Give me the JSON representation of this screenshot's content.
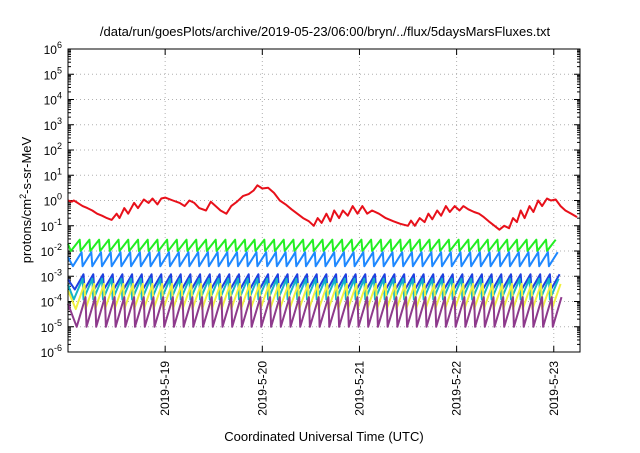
{
  "chart_data": {
    "type": "line",
    "title": "/data/run/goesPlots/archive/2019-05-23/06:00/bryn/../flux/5daysMarsFluxes.txt",
    "xlabel": "Coordinated Universal Time (UTC)",
    "ylabel": {
      "prefix": "protons/cm",
      "sup": "2",
      "suffix": "-s-sr-MeV"
    },
    "yscale": "log",
    "ylim": [
      1e-06,
      1000000.0
    ],
    "xlim": [
      0.0,
      5.27
    ],
    "grid": true,
    "x_ticks": [
      {
        "x": 1,
        "label": "2019-5-19"
      },
      {
        "x": 2,
        "label": "2019-5-20"
      },
      {
        "x": 3,
        "label": "2019-5-21"
      },
      {
        "x": 4,
        "label": "2019-5-22"
      },
      {
        "x": 5,
        "label": "2019-5-23"
      }
    ],
    "y_ticks": [
      {
        "exp": -6,
        "base": "10",
        "sup": "-6"
      },
      {
        "exp": -5,
        "base": "10",
        "sup": "-5"
      },
      {
        "exp": -4,
        "base": "10",
        "sup": "-4"
      },
      {
        "exp": -3,
        "base": "10",
        "sup": "-3"
      },
      {
        "exp": -2,
        "base": "10",
        "sup": "-2"
      },
      {
        "exp": -1,
        "base": "10",
        "sup": "-1"
      },
      {
        "exp": 0,
        "base": "10",
        "sup": "0"
      },
      {
        "exp": 1,
        "base": "10",
        "sup": "1"
      },
      {
        "exp": 2,
        "base": "10",
        "sup": "2"
      },
      {
        "exp": 3,
        "base": "10",
        "sup": "3"
      },
      {
        "exp": 4,
        "base": "10",
        "sup": "4"
      },
      {
        "exp": 5,
        "base": "10",
        "sup": "5"
      },
      {
        "exp": 6,
        "base": "10",
        "sup": "6"
      }
    ],
    "series": [
      {
        "color": "#e8101a",
        "width": 2,
        "points": [
          [
            0.0,
            1.0
          ],
          [
            0.04,
            0.9
          ],
          [
            0.06,
            1.0
          ],
          [
            0.1,
            0.8
          ],
          [
            0.15,
            0.6
          ],
          [
            0.2,
            0.5
          ],
          [
            0.25,
            0.4
          ],
          [
            0.3,
            0.3
          ],
          [
            0.35,
            0.25
          ],
          [
            0.4,
            0.2
          ],
          [
            0.45,
            0.17
          ],
          [
            0.5,
            0.3
          ],
          [
            0.53,
            0.2
          ],
          [
            0.58,
            0.5
          ],
          [
            0.62,
            0.3
          ],
          [
            0.68,
            0.8
          ],
          [
            0.72,
            0.5
          ],
          [
            0.78,
            1.1
          ],
          [
            0.83,
            0.8
          ],
          [
            0.87,
            1.2
          ],
          [
            0.92,
            0.7
          ],
          [
            0.96,
            1.2
          ],
          [
            1.0,
            1.3
          ],
          [
            1.08,
            1.0
          ],
          [
            1.15,
            0.8
          ],
          [
            1.2,
            0.6
          ],
          [
            1.25,
            1.0
          ],
          [
            1.3,
            0.8
          ],
          [
            1.35,
            0.5
          ],
          [
            1.42,
            0.4
          ],
          [
            1.47,
            0.9
          ],
          [
            1.52,
            0.6
          ],
          [
            1.57,
            0.4
          ],
          [
            1.63,
            0.3
          ],
          [
            1.68,
            0.6
          ],
          [
            1.74,
            0.9
          ],
          [
            1.8,
            1.5
          ],
          [
            1.86,
            1.8
          ],
          [
            1.91,
            2.5
          ],
          [
            1.95,
            4.0
          ],
          [
            2.0,
            3.0
          ],
          [
            2.06,
            3.2
          ],
          [
            2.12,
            2.0
          ],
          [
            2.18,
            1.0
          ],
          [
            2.24,
            0.7
          ],
          [
            2.3,
            0.45
          ],
          [
            2.36,
            0.3
          ],
          [
            2.42,
            0.2
          ],
          [
            2.48,
            0.15
          ],
          [
            2.53,
            0.1
          ],
          [
            2.57,
            0.2
          ],
          [
            2.61,
            0.13
          ],
          [
            2.66,
            0.3
          ],
          [
            2.7,
            0.15
          ],
          [
            2.74,
            0.4
          ],
          [
            2.79,
            0.2
          ],
          [
            2.83,
            0.4
          ],
          [
            2.88,
            0.25
          ],
          [
            2.93,
            0.6
          ],
          [
            2.98,
            0.3
          ],
          [
            3.03,
            0.6
          ],
          [
            3.08,
            0.3
          ],
          [
            3.13,
            0.4
          ],
          [
            3.2,
            0.3
          ],
          [
            3.27,
            0.2
          ],
          [
            3.35,
            0.15
          ],
          [
            3.42,
            0.12
          ],
          [
            3.5,
            0.1
          ],
          [
            3.53,
            0.16
          ],
          [
            3.57,
            0.1
          ],
          [
            3.62,
            0.2
          ],
          [
            3.67,
            0.14
          ],
          [
            3.71,
            0.3
          ],
          [
            3.75,
            0.18
          ],
          [
            3.8,
            0.4
          ],
          [
            3.84,
            0.25
          ],
          [
            3.89,
            0.6
          ],
          [
            3.93,
            0.35
          ],
          [
            3.98,
            0.6
          ],
          [
            4.03,
            0.4
          ],
          [
            4.07,
            0.6
          ],
          [
            4.12,
            0.45
          ],
          [
            4.18,
            0.35
          ],
          [
            4.23,
            0.3
          ],
          [
            4.28,
            0.22
          ],
          [
            4.33,
            0.15
          ],
          [
            4.39,
            0.1
          ],
          [
            4.44,
            0.07
          ],
          [
            4.49,
            0.1
          ],
          [
            4.54,
            0.08
          ],
          [
            4.58,
            0.2
          ],
          [
            4.62,
            0.14
          ],
          [
            4.66,
            0.4
          ],
          [
            4.7,
            0.2
          ],
          [
            4.75,
            0.6
          ],
          [
            4.79,
            0.35
          ],
          [
            4.84,
            1.0
          ],
          [
            4.88,
            0.6
          ],
          [
            4.93,
            1.2
          ],
          [
            4.97,
            1.0
          ],
          [
            5.02,
            1.1
          ],
          [
            5.07,
            0.6
          ],
          [
            5.12,
            0.4
          ],
          [
            5.18,
            0.3
          ],
          [
            5.24,
            0.22
          ]
        ]
      },
      {
        "color": "#22ee22",
        "width": 2,
        "sawtooth": {
          "start": 0.03,
          "period": 0.1,
          "count": 50,
          "hi": 0.028,
          "lo": 0.01
        }
      },
      {
        "color": "#1e88ff",
        "width": 2,
        "sawtooth": {
          "start": 0.05,
          "period": 0.1,
          "count": 50,
          "hi": 0.009,
          "lo": 0.0025
        }
      },
      {
        "color": "#1f3fe0",
        "width": 2,
        "sawtooth": {
          "start": 0.07,
          "period": 0.1,
          "count": 50,
          "hi": 0.0012,
          "lo": 0.0003
        }
      },
      {
        "color": "#14b4c8",
        "width": 2,
        "sawtooth": {
          "start": 0.06,
          "period": 0.1,
          "count": 50,
          "hi": 0.0008,
          "lo": 0.00012
        }
      },
      {
        "color": "#f0f040",
        "width": 2,
        "sawtooth": {
          "start": 0.08,
          "period": 0.1,
          "count": 50,
          "hi": 0.0005,
          "lo": 5e-05
        }
      },
      {
        "color": "#8e3a8c",
        "width": 2,
        "sawtooth": {
          "start": 0.09,
          "period": 0.1,
          "count": 50,
          "hi": 0.00015,
          "lo": 1e-05
        }
      }
    ]
  }
}
